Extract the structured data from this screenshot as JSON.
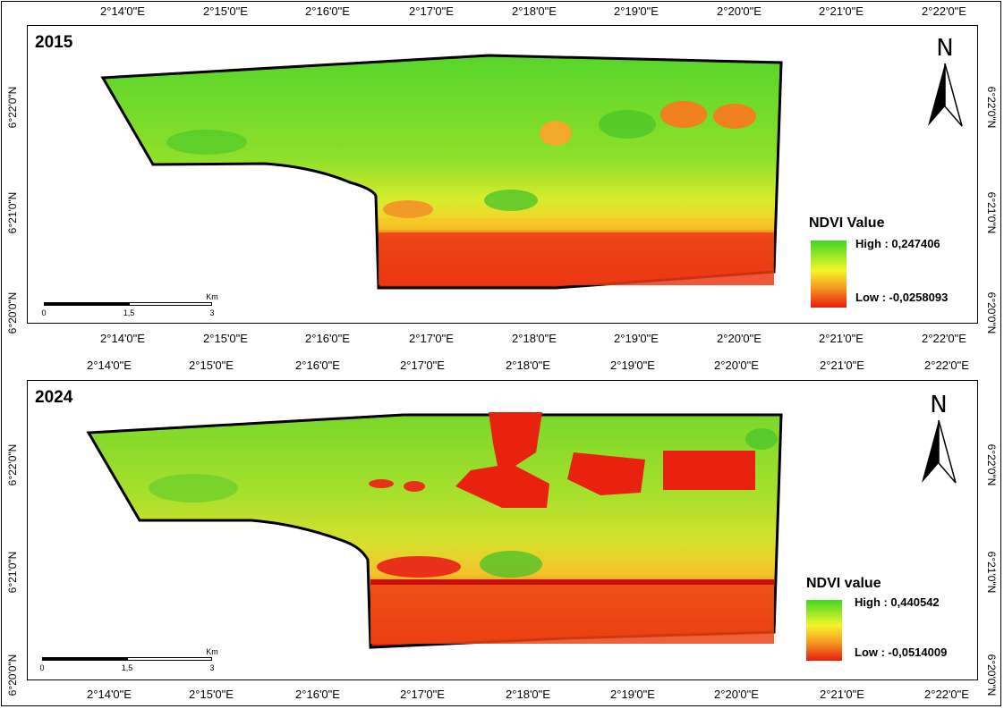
{
  "x_ticks": [
    "2°14'0\"E",
    "2°15'0\"E",
    "2°16'0\"E",
    "2°17'0\"E",
    "2°18'0\"E",
    "2°19'0\"E",
    "2°20'0\"E",
    "2°21'0\"E",
    "2°22'0\"E"
  ],
  "y_ticks": [
    "6°22'0\"N",
    "6°21'0\"N",
    "6°20'0\"N"
  ],
  "colors": {
    "high": "#3ed822",
    "mid": "#f5f52a",
    "low": "#e81c10"
  },
  "panels": [
    {
      "year": "2015",
      "legend": {
        "title": "NDVI Value",
        "high": "High : 0,247406",
        "low": "Low : -0,0258093"
      },
      "north": "N",
      "scalebar": {
        "unit": "Km",
        "labels": [
          "0",
          "1,5",
          "3"
        ]
      }
    },
    {
      "year": "2024",
      "legend": {
        "title": "NDVI value",
        "high": "High : 0,440542",
        "low": "Low : -0,0514009"
      },
      "north": "N",
      "scalebar": {
        "unit": "Km",
        "labels": [
          "0",
          "1,5",
          "3"
        ]
      }
    }
  ]
}
